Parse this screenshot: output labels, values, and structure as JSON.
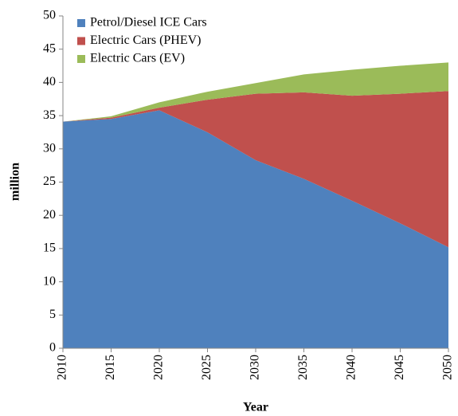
{
  "chart_data": {
    "type": "stacked_area",
    "x": [
      2010,
      2015,
      2020,
      2025,
      2030,
      2035,
      2040,
      2045,
      2050
    ],
    "series": [
      {
        "name": "Petrol/Diesel ICE Cars",
        "color": "#4f81bd",
        "values": [
          34.1,
          34.5,
          35.8,
          32.5,
          28.3,
          25.5,
          22.2,
          18.8,
          15.2
        ]
      },
      {
        "name": "Electric Cars (PHEV)",
        "color": "#c0504d",
        "values": [
          0,
          0.2,
          0.4,
          4.9,
          10.0,
          13.0,
          15.8,
          19.5,
          23.5
        ]
      },
      {
        "name": "Electric Cars (EV)",
        "color": "#9bbb59",
        "values": [
          0,
          0.2,
          0.8,
          1.2,
          1.6,
          2.7,
          3.9,
          4.2,
          4.3
        ]
      }
    ],
    "xlabel": "Year",
    "ylabel": "million",
    "xlim": [
      2010,
      2050
    ],
    "xticks": [
      2010,
      2015,
      2020,
      2025,
      2030,
      2035,
      2040,
      2045,
      2050
    ],
    "ylim": [
      0,
      50
    ],
    "yticks": [
      0,
      5,
      10,
      15,
      20,
      25,
      30,
      35,
      40,
      45,
      50
    ],
    "legend": "top-left",
    "grid": false
  }
}
